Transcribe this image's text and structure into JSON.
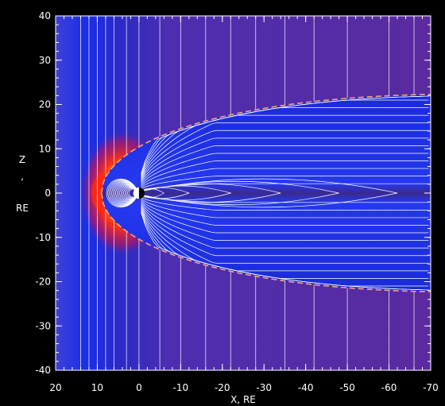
{
  "chart_data": {
    "type": "heatmap",
    "title": "",
    "xlabel": "X, RE",
    "ylabel_lines": [
      "Z",
      ",",
      "RE"
    ],
    "xlim": [
      20,
      -70
    ],
    "ylim": [
      -40,
      40
    ],
    "x_ticks": [
      20,
      10,
      0,
      -10,
      -20,
      -30,
      -40,
      -50,
      -60,
      -70
    ],
    "x_tick_labels": [
      "20",
      "10",
      "0",
      "-10",
      "-20",
      "-30",
      "-40",
      "-50",
      "-60",
      "-70"
    ],
    "y_ticks": [
      40,
      30,
      20,
      10,
      0,
      -10,
      -20,
      -30,
      -40
    ],
    "y_tick_labels": [
      "40",
      "30",
      "20",
      "10",
      "0",
      "-10",
      "-20",
      "-30",
      "-40"
    ],
    "colors": {
      "background": "#000000",
      "solar_wind": "#5a2aa8",
      "upstream": "#1f35e6",
      "magnetosphere": "#0a0a9c",
      "tail_lobe": "#2330e0",
      "sheath_hot": "#ff2a10",
      "field_line": "#ffffff",
      "boundary": "#ffa07a",
      "frame": "#ffffff"
    },
    "magnetopause_boundary": {
      "nose_x": 9,
      "tail_end_x": -70,
      "tail_half_width_z": 26
    },
    "planet": {
      "x": 0,
      "z": 0,
      "radius_re": 1
    },
    "imf_lines_x": [
      14,
      12,
      10,
      8,
      6,
      3,
      0,
      -5,
      -10,
      -16,
      -22,
      -28,
      -35,
      -42,
      -50,
      -60,
      -66
    ],
    "closed_field_line_count": 18,
    "tail_field_line_count": 14
  }
}
